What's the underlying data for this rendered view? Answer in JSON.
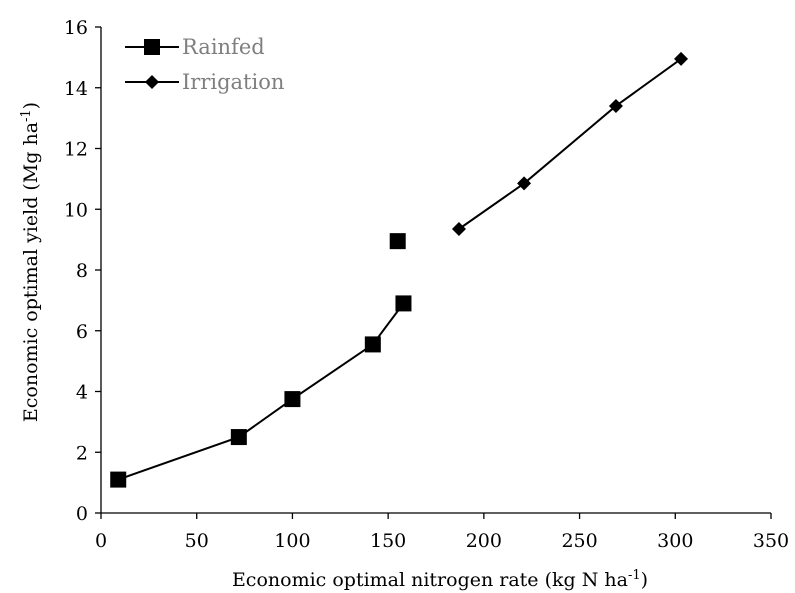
{
  "chart_data": {
    "type": "scatter",
    "title": "",
    "xlabel": "Economic optimal nitrogen rate  (kg N ha",
    "xlabel_sup": "-1",
    "xlabel_end": ")",
    "ylabel": "Economic optimal yield  (Mg ha",
    "ylabel_sup": "-1",
    "ylabel_end": ")",
    "xlim": [
      0,
      350
    ],
    "ylim": [
      0,
      16
    ],
    "xticks": [
      0,
      50,
      100,
      150,
      200,
      250,
      300,
      350
    ],
    "yticks": [
      0,
      2,
      4,
      6,
      8,
      10,
      12,
      14,
      16
    ],
    "grid": false,
    "legend": "top-left",
    "series": [
      {
        "name": "Rainfed",
        "marker": "square",
        "color": "#000000",
        "line": true,
        "points": [
          {
            "x": 9,
            "y": 1.1,
            "connected": true
          },
          {
            "x": 72,
            "y": 2.5,
            "connected": true
          },
          {
            "x": 100,
            "y": 3.75,
            "connected": true
          },
          {
            "x": 142,
            "y": 5.55,
            "connected": true
          },
          {
            "x": 158,
            "y": 6.9,
            "connected": true
          },
          {
            "x": 155,
            "y": 8.95,
            "connected": false
          }
        ]
      },
      {
        "name": "Irrigation",
        "marker": "diamond",
        "color": "#000000",
        "line": true,
        "points": [
          {
            "x": 187,
            "y": 9.35,
            "connected": true
          },
          {
            "x": 221,
            "y": 10.85,
            "connected": true
          },
          {
            "x": 269,
            "y": 13.4,
            "connected": true
          },
          {
            "x": 303,
            "y": 14.95,
            "connected": true
          }
        ]
      }
    ]
  }
}
